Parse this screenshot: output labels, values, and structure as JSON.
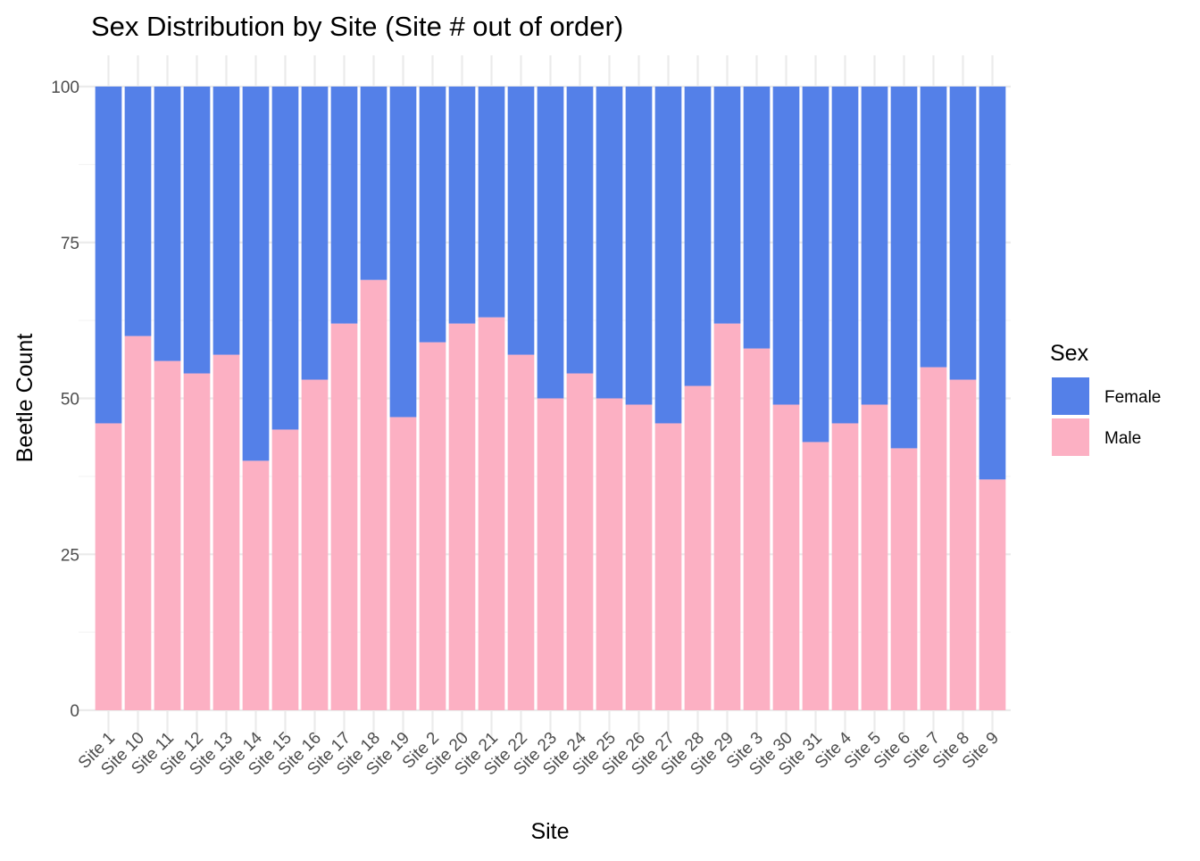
{
  "chart_data": {
    "type": "bar",
    "stacked": true,
    "title": "Sex Distribution by Site (Site # out of order)",
    "xlabel": "Site",
    "ylabel": "Beetle Count",
    "ylim": [
      0,
      100
    ],
    "yticks": [
      0,
      25,
      50,
      75,
      100
    ],
    "grid": true,
    "legend_title": "Sex",
    "legend_position": "right",
    "categories": [
      "Site 1",
      "Site 10",
      "Site 11",
      "Site 12",
      "Site 13",
      "Site 14",
      "Site 15",
      "Site 16",
      "Site 17",
      "Site 18",
      "Site 19",
      "Site 2",
      "Site 20",
      "Site 21",
      "Site 22",
      "Site 23",
      "Site 24",
      "Site 25",
      "Site 26",
      "Site 27",
      "Site 28",
      "Site 29",
      "Site 3",
      "Site 30",
      "Site 31",
      "Site 4",
      "Site 5",
      "Site 6",
      "Site 7",
      "Site 8",
      "Site 9"
    ],
    "series": [
      {
        "name": "Male",
        "color": "#fcb0c3",
        "values": [
          46,
          60,
          56,
          54,
          57,
          40,
          45,
          53,
          62,
          69,
          47,
          59,
          62,
          63,
          57,
          50,
          54,
          50,
          49,
          46,
          52,
          62,
          58,
          49,
          43,
          46,
          49,
          42,
          55,
          53,
          37
        ]
      },
      {
        "name": "Female",
        "color": "#5480e8",
        "values": [
          54,
          40,
          44,
          46,
          43,
          60,
          55,
          47,
          38,
          31,
          53,
          41,
          38,
          37,
          43,
          50,
          46,
          50,
          51,
          54,
          48,
          38,
          42,
          51,
          57,
          54,
          51,
          58,
          45,
          47,
          63
        ]
      }
    ],
    "legend_order": [
      "Female",
      "Male"
    ]
  }
}
